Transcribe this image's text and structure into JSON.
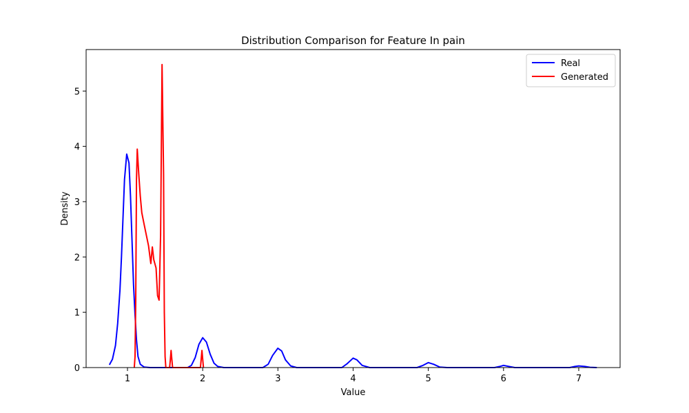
{
  "chart_data": {
    "type": "line",
    "title": "Distribution Comparison for Feature In pain",
    "xlabel": "Value",
    "ylabel": "Density",
    "xlim": [
      0.45,
      7.55
    ],
    "ylim": [
      0,
      5.75
    ],
    "xticks": [
      1,
      2,
      3,
      4,
      5,
      6,
      7
    ],
    "yticks": [
      0,
      1,
      2,
      3,
      4,
      5
    ],
    "grid": false,
    "legend": {
      "position": "top-right"
    },
    "series": [
      {
        "name": "Real",
        "color": "#0000ff",
        "points": [
          [
            0.76,
            0.05
          ],
          [
            0.8,
            0.15
          ],
          [
            0.84,
            0.4
          ],
          [
            0.87,
            0.8
          ],
          [
            0.9,
            1.4
          ],
          [
            0.92,
            2.0
          ],
          [
            0.94,
            2.7
          ],
          [
            0.96,
            3.4
          ],
          [
            0.99,
            3.86
          ],
          [
            1.02,
            3.7
          ],
          [
            1.04,
            3.1
          ],
          [
            1.06,
            2.3
          ],
          [
            1.08,
            1.5
          ],
          [
            1.1,
            0.95
          ],
          [
            1.12,
            0.5
          ],
          [
            1.14,
            0.2
          ],
          [
            1.17,
            0.06
          ],
          [
            1.22,
            0.01
          ],
          [
            1.3,
            0.0
          ],
          [
            1.8,
            0.0
          ],
          [
            1.85,
            0.04
          ],
          [
            1.9,
            0.18
          ],
          [
            1.95,
            0.42
          ],
          [
            2.0,
            0.54
          ],
          [
            2.05,
            0.46
          ],
          [
            2.1,
            0.24
          ],
          [
            2.15,
            0.08
          ],
          [
            2.2,
            0.02
          ],
          [
            2.28,
            0.0
          ],
          [
            2.8,
            0.0
          ],
          [
            2.87,
            0.06
          ],
          [
            2.93,
            0.22
          ],
          [
            3.0,
            0.35
          ],
          [
            3.05,
            0.3
          ],
          [
            3.1,
            0.14
          ],
          [
            3.17,
            0.03
          ],
          [
            3.25,
            0.0
          ],
          [
            3.85,
            0.0
          ],
          [
            3.92,
            0.07
          ],
          [
            4.0,
            0.17
          ],
          [
            4.05,
            0.14
          ],
          [
            4.12,
            0.04
          ],
          [
            4.22,
            0.0
          ],
          [
            4.85,
            0.0
          ],
          [
            4.93,
            0.04
          ],
          [
            5.0,
            0.09
          ],
          [
            5.07,
            0.06
          ],
          [
            5.15,
            0.01
          ],
          [
            5.25,
            0.0
          ],
          [
            5.88,
            0.0
          ],
          [
            5.95,
            0.02
          ],
          [
            6.0,
            0.04
          ],
          [
            6.07,
            0.02
          ],
          [
            6.15,
            0.0
          ],
          [
            6.88,
            0.0
          ],
          [
            6.95,
            0.02
          ],
          [
            7.0,
            0.03
          ],
          [
            7.08,
            0.02
          ],
          [
            7.15,
            0.005
          ],
          [
            7.24,
            0.0
          ]
        ]
      },
      {
        "name": "Generated",
        "color": "#ff0000",
        "points": [
          [
            1.09,
            0.0
          ],
          [
            1.1,
            0.2
          ],
          [
            1.11,
            1.2
          ],
          [
            1.12,
            3.4
          ],
          [
            1.13,
            3.95
          ],
          [
            1.15,
            3.5
          ],
          [
            1.17,
            3.1
          ],
          [
            1.19,
            2.8
          ],
          [
            1.22,
            2.6
          ],
          [
            1.25,
            2.4
          ],
          [
            1.28,
            2.2
          ],
          [
            1.31,
            1.88
          ],
          [
            1.33,
            2.18
          ],
          [
            1.35,
            1.95
          ],
          [
            1.38,
            1.8
          ],
          [
            1.4,
            1.3
          ],
          [
            1.42,
            1.22
          ],
          [
            1.44,
            2.4
          ],
          [
            1.46,
            5.48
          ],
          [
            1.48,
            3.5
          ],
          [
            1.49,
            1.0
          ],
          [
            1.5,
            0.2
          ],
          [
            1.51,
            0.0
          ],
          [
            1.56,
            0.0
          ],
          [
            1.57,
            0.15
          ],
          [
            1.58,
            0.31
          ],
          [
            1.59,
            0.15
          ],
          [
            1.6,
            0.0
          ],
          [
            1.97,
            0.0
          ],
          [
            1.98,
            0.15
          ],
          [
            1.99,
            0.31
          ],
          [
            2.0,
            0.15
          ],
          [
            2.01,
            0.0
          ]
        ]
      }
    ]
  }
}
